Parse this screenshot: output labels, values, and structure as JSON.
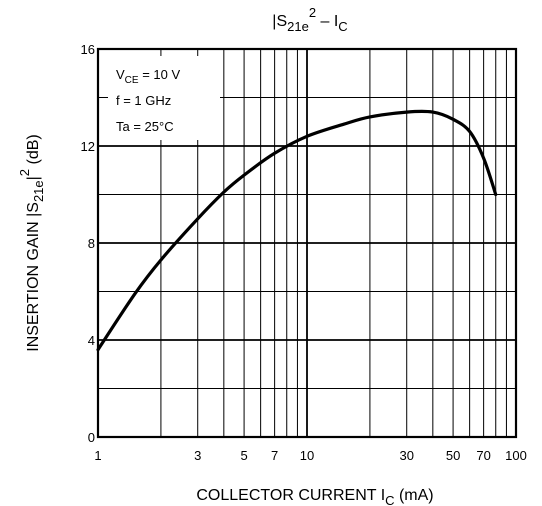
{
  "chart_data": {
    "type": "line",
    "title": {
      "pre": "|S",
      "sub": "21e",
      "sup": "2",
      "mid": " – I",
      "sub2": "C"
    },
    "xlabel": {
      "pre": "COLLECTOR CURRENT   I",
      "sub": "C",
      "post": "   (mA)"
    },
    "ylabel": {
      "pre": "INSERTION GAIN   |S",
      "sub": "21e",
      "mid": "|",
      "sup": "2",
      "post": "   (dB)"
    },
    "x_scale": "log",
    "xlim": [
      1,
      100
    ],
    "ylim": [
      0,
      16
    ],
    "x_ticks": [
      1,
      3,
      5,
      7,
      10,
      30,
      50,
      70,
      100
    ],
    "x_tick_labels": [
      "1",
      "3",
      "5",
      "7",
      "10",
      "30",
      "50",
      "70",
      "100"
    ],
    "y_ticks": [
      0,
      4,
      8,
      12,
      16
    ],
    "y_tick_labels": [
      "0",
      "4",
      "8",
      "12",
      "16"
    ],
    "grid": true,
    "conditions": [
      {
        "pre": "V",
        "sub": "CE",
        "post": " = 10 V"
      },
      {
        "pre": "f = 1 GHz",
        "sub": "",
        "post": ""
      },
      {
        "pre": "Ta = 25°C",
        "sub": "",
        "post": ""
      }
    ],
    "series": [
      {
        "x": [
          1,
          1.5,
          2,
          3,
          4,
          5,
          7,
          10,
          15,
          20,
          30,
          40,
          50,
          60,
          70,
          80
        ],
        "y": [
          3.6,
          5.9,
          7.3,
          9.0,
          10.1,
          10.8,
          11.7,
          12.4,
          12.9,
          13.2,
          13.4,
          13.4,
          13.1,
          12.6,
          11.5,
          10.0
        ]
      }
    ]
  }
}
